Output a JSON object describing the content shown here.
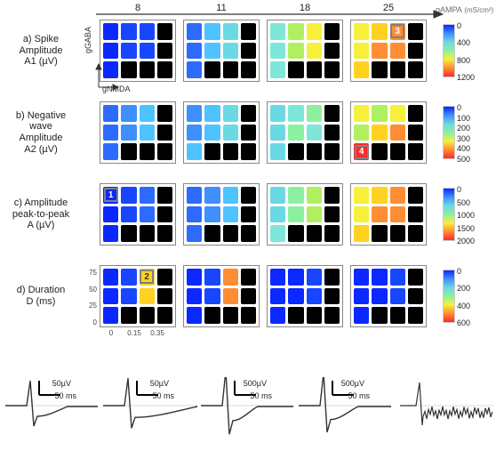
{
  "top_label": "gAMPA",
  "top_label_unit": "(mS/cm²)",
  "x_values": [
    "8",
    "11",
    "18",
    "25"
  ],
  "panel_left_axis": "gGABA",
  "panel_bottom_axis": "gNMDA",
  "rows": [
    {
      "key": "a",
      "label": "a) Spike\nAmplitude\nA1 (µV)",
      "cbar": [
        "0",
        "400",
        "800",
        "1200"
      ]
    },
    {
      "key": "b",
      "label": "b) Negative\nwave\nAmplitude\nA2 (µV)",
      "cbar": [
        "0",
        "100",
        "200",
        "300",
        "400",
        "500"
      ]
    },
    {
      "key": "c",
      "label": "c) Amplitude\npeak-to-peak\nA (µV)",
      "cbar": [
        "0",
        "500",
        "1000",
        "1500",
        "2000"
      ]
    },
    {
      "key": "d",
      "label": "d) Duration\nD (ms)",
      "cbar": [
        "0",
        "200",
        "400",
        "600"
      ]
    }
  ],
  "d_yticks": [
    "0",
    "25",
    "50",
    "75"
  ],
  "d_xticks": [
    "0",
    "0.15",
    "0.35"
  ],
  "palette": {
    "k": "#000000",
    "b0": "#0a28ff",
    "b1": "#1846ff",
    "b2": "#2d6bff",
    "b3": "#3f8fff",
    "c0": "#4fc3ff",
    "c1": "#6bd9e3",
    "c2": "#7fe7d9",
    "g0": "#8cf0a0",
    "g1": "#b0f060",
    "y0": "#f6f03a",
    "y1": "#ffd21f",
    "o0": "#ff8d33",
    "o1": "#ff6a19",
    "r0": "#ff2a2a"
  },
  "gradient": [
    "#0a28ff",
    "#3f8fff",
    "#6bd9e3",
    "#8cf0a0",
    "#f6f03a",
    "#ff8d33",
    "#ff2a2a"
  ],
  "panels": {
    "a": [
      [
        [
          "b0",
          "b1",
          "b1",
          "k"
        ],
        [
          "b0",
          "b1",
          "b1",
          "k"
        ],
        [
          "b0",
          "k",
          "k",
          "k"
        ]
      ],
      [
        [
          "b2",
          "c0",
          "c1",
          "k"
        ],
        [
          "b2",
          "c0",
          "c1",
          "k"
        ],
        [
          "b2",
          "k",
          "k",
          "k"
        ]
      ],
      [
        [
          "c2",
          "g1",
          "y0",
          "k"
        ],
        [
          "c2",
          "g1",
          "y0",
          "k"
        ],
        [
          "c2",
          "k",
          "k",
          "k"
        ]
      ],
      [
        [
          "y0",
          "y1",
          "o0",
          "k"
        ],
        [
          "y0",
          "o0",
          "o0",
          "k"
        ],
        [
          "y1",
          "k",
          "k",
          "k"
        ]
      ]
    ],
    "b": [
      [
        [
          "b2",
          "b3",
          "c0",
          "k"
        ],
        [
          "b2",
          "b3",
          "c0",
          "k"
        ],
        [
          "b2",
          "k",
          "k",
          "k"
        ]
      ],
      [
        [
          "b3",
          "c0",
          "c1",
          "k"
        ],
        [
          "b3",
          "c0",
          "c1",
          "k"
        ],
        [
          "c0",
          "k",
          "k",
          "k"
        ]
      ],
      [
        [
          "c1",
          "c2",
          "g0",
          "k"
        ],
        [
          "c1",
          "g0",
          "c2",
          "k"
        ],
        [
          "c1",
          "k",
          "k",
          "k"
        ]
      ],
      [
        [
          "y0",
          "g1",
          "y0",
          "k"
        ],
        [
          "g1",
          "y1",
          "o0",
          "k"
        ],
        [
          "r0",
          "k",
          "k",
          "k"
        ]
      ]
    ],
    "c": [
      [
        [
          "b0",
          "b1",
          "b2",
          "k"
        ],
        [
          "b0",
          "b1",
          "b2",
          "k"
        ],
        [
          "b0",
          "k",
          "k",
          "k"
        ]
      ],
      [
        [
          "b2",
          "b3",
          "c0",
          "k"
        ],
        [
          "b2",
          "b3",
          "c0",
          "k"
        ],
        [
          "b2",
          "k",
          "k",
          "k"
        ]
      ],
      [
        [
          "c1",
          "g0",
          "g1",
          "k"
        ],
        [
          "c1",
          "g0",
          "g1",
          "k"
        ],
        [
          "c2",
          "k",
          "k",
          "k"
        ]
      ],
      [
        [
          "y0",
          "y1",
          "o0",
          "k"
        ],
        [
          "y0",
          "o0",
          "o0",
          "k"
        ],
        [
          "y1",
          "k",
          "k",
          "k"
        ]
      ]
    ],
    "d": [
      [
        [
          "b0",
          "b1",
          "y1",
          "k"
        ],
        [
          "b0",
          "b1",
          "y1",
          "k"
        ],
        [
          "b0",
          "k",
          "k",
          "k"
        ]
      ],
      [
        [
          "b0",
          "b1",
          "o0",
          "k"
        ],
        [
          "b0",
          "b1",
          "o0",
          "k"
        ],
        [
          "b0",
          "k",
          "k",
          "k"
        ]
      ],
      [
        [
          "b0",
          "b0",
          "b1",
          "k"
        ],
        [
          "b0",
          "b0",
          "b1",
          "k"
        ],
        [
          "b0",
          "k",
          "k",
          "k"
        ]
      ],
      [
        [
          "b0",
          "b0",
          "b1",
          "k"
        ],
        [
          "b0",
          "b0",
          "b1",
          "k"
        ],
        [
          "b0",
          "k",
          "k",
          "k"
        ]
      ]
    ]
  },
  "markers": [
    {
      "num": "3",
      "panel_row": "a",
      "panel_col": 3,
      "cell_row": 0,
      "cell_col": 2,
      "bg": "#ff8d33",
      "light": false
    },
    {
      "num": "4",
      "panel_row": "b",
      "panel_col": 3,
      "cell_row": 2,
      "cell_col": 0,
      "bg": "#ff2a2a",
      "light": false
    },
    {
      "num": "1",
      "panel_row": "c",
      "panel_col": 0,
      "cell_row": 0,
      "cell_col": 0,
      "bg": "#0a28ff",
      "light": false
    },
    {
      "num": "2",
      "panel_row": "d",
      "panel_col": 0,
      "cell_row": 0,
      "cell_col": 2,
      "bg": "#ffd21f",
      "light": true
    }
  ],
  "traces": [
    {
      "num": "1",
      "scale_v": "50µV",
      "scale_t": "50 ms",
      "amp": 1,
      "dur": 1
    },
    {
      "num": "2",
      "scale_v": "50µV",
      "scale_t": "50 ms",
      "amp": 1.1,
      "dur": 2.2
    },
    {
      "num": "3",
      "scale_v": "500µV",
      "scale_t": "50 ms",
      "amp": 1.4,
      "dur": 0.8
    },
    {
      "num": "4",
      "scale_v": "500µV",
      "scale_t": "50 ms",
      "amp": 1.3,
      "dur": 0.9
    }
  ],
  "black_trace": {
    "present": true
  }
}
